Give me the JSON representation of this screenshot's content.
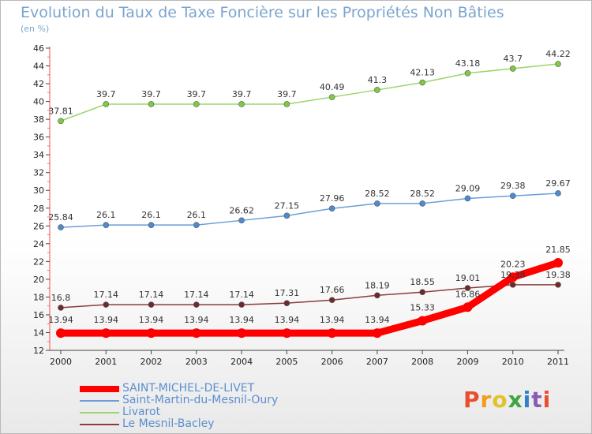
{
  "title": "Evolution du Taux de Taxe Foncière sur les Propriétés Non Bâties",
  "subtitle": "(en %)",
  "logo": {
    "text": "Proxiti",
    "letters": [
      "P",
      "r",
      "o",
      "x",
      "i",
      "t",
      "i"
    ],
    "colors": [
      "#e94f2e",
      "#f29b1c",
      "#e2c12a",
      "#3ea541",
      "#2f82c7",
      "#8a5bb5",
      "#e94f2e"
    ]
  },
  "chart_data": {
    "type": "line",
    "title": "Evolution du Taux de Taxe Foncière sur les Propriétés Non Bâties",
    "ylabel": "(en %)",
    "xlabel": "",
    "x": [
      "2000",
      "2001",
      "2002",
      "2003",
      "2004",
      "2005",
      "2006",
      "2007",
      "2008",
      "2009",
      "2010",
      "2011"
    ],
    "ylim": [
      12,
      46
    ],
    "yticks": [
      12,
      14,
      16,
      18,
      20,
      22,
      24,
      26,
      28,
      30,
      32,
      34,
      36,
      38,
      40,
      42,
      44,
      46
    ],
    "grid": false,
    "legend": "bottom-left",
    "series": [
      {
        "name": "SAINT-MICHEL-DE-LIVET",
        "color": "#ff0000",
        "marker": "#ff0000",
        "width": 9,
        "radius": 6,
        "values": [
          13.94,
          13.94,
          13.94,
          13.94,
          13.94,
          13.94,
          13.94,
          13.94,
          15.33,
          16.86,
          20.23,
          21.85
        ],
        "labels": [
          "13.94",
          "13.94",
          "13.94",
          "13.94",
          "13.94",
          "13.94",
          "13.94",
          "13.94",
          "15.33",
          "16.86",
          "20.23",
          "21.85"
        ]
      },
      {
        "name": "Saint-Martin-du-Mesnil-Oury",
        "color": "#6b9fd6",
        "marker": "#4a8cd4",
        "width": 1.5,
        "radius": 3.5,
        "values": [
          25.84,
          26.1,
          26.1,
          26.1,
          26.62,
          27.15,
          27.96,
          28.52,
          28.52,
          29.09,
          29.38,
          29.67
        ],
        "labels": [
          "25.84",
          "26.1",
          "26.1",
          "26.1",
          "26.62",
          "27.15",
          "27.96",
          "28.52",
          "28.52",
          "29.09",
          "29.38",
          "29.67"
        ]
      },
      {
        "name": "Livarot",
        "color": "#9ad66a",
        "marker": "#7dcc3e",
        "width": 1.5,
        "radius": 3.5,
        "values": [
          37.81,
          39.7,
          39.7,
          39.7,
          39.7,
          39.7,
          40.49,
          41.3,
          42.13,
          43.18,
          43.7,
          44.22
        ],
        "labels": [
          "37.81",
          "39.7",
          "39.7",
          "39.7",
          "39.7",
          "39.7",
          "40.49",
          "41.3",
          "42.13",
          "43.18",
          "43.7",
          "44.22"
        ]
      },
      {
        "name": "Le Mesnil-Bacley",
        "color": "#8b3c3c",
        "marker": "#6f2a2a",
        "width": 1.5,
        "radius": 3.5,
        "values": [
          16.8,
          17.14,
          17.14,
          17.14,
          17.14,
          17.31,
          17.66,
          18.19,
          18.55,
          19.01,
          19.38,
          19.38
        ],
        "labels": [
          "16.8",
          "17.14",
          "17.14",
          "17.14",
          "17.14",
          "17.31",
          "17.66",
          "18.19",
          "18.55",
          "19.01",
          "19.38",
          "19.38"
        ]
      }
    ]
  }
}
